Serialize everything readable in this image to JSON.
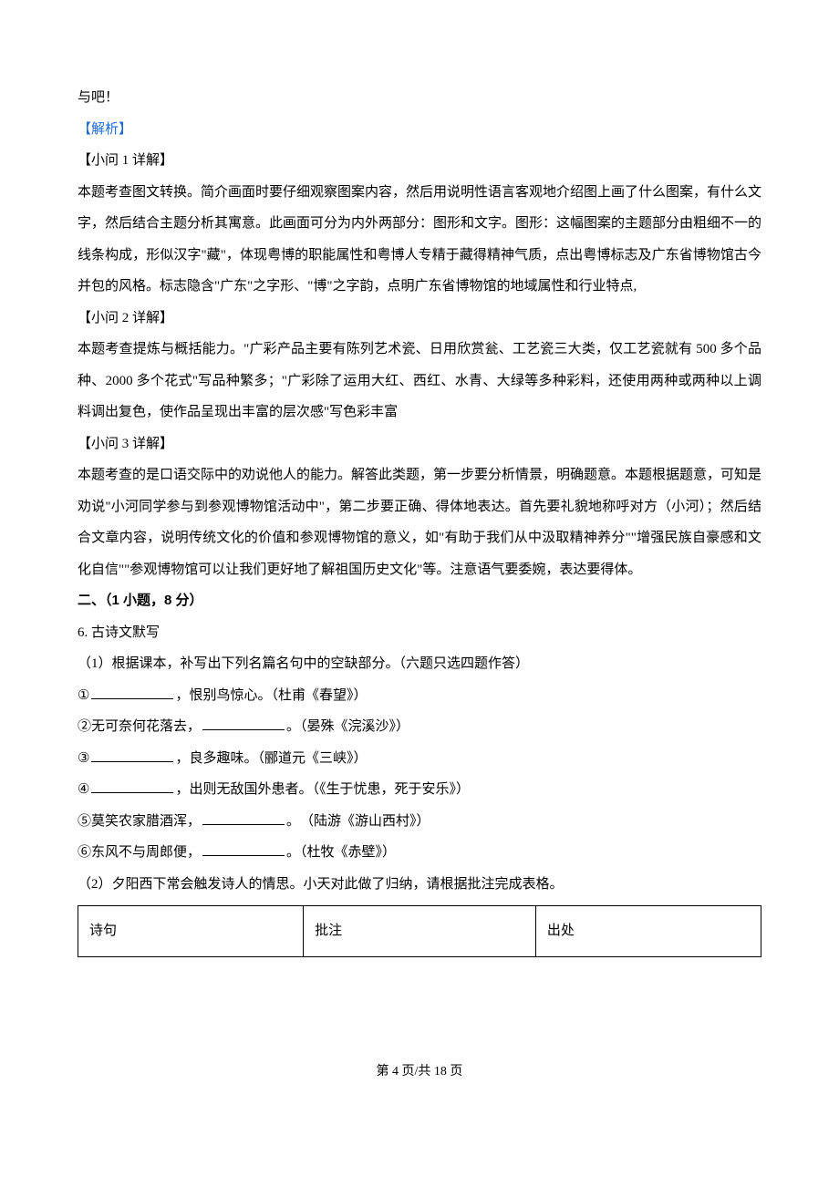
{
  "lines": {
    "l0": "与吧！",
    "l1": "【解析】",
    "l2": "【小问 1 详解】",
    "l3": "本题考查图文转换。简介画面时要仔细观察图案内容，然后用说明性语言客观地介绍图上画了什么图案，有什么文字，然后结合主题分析其寓意。此画面可分为内外两部分：图形和文字。图形：这幅图案的主题部分由粗细不一的线条构成，形似汉字\"藏\"，体现粤博的职能属性和粤博人专精于藏得精神气质，点出粤博标志及广东省博物馆古今并包的风格。标志隐含\"广东\"之字形、\"博\"之字韵，点明广东省博物馆的地域属性和行业特点,",
    "l4": "【小问 2 详解】",
    "l5": "本题考查提炼与概括能力。\"广彩产品主要有陈列艺术瓷、日用欣赏瓮、工艺瓷三大类，仅工艺瓷就有 500 多个品种、2000 多个花式\"写品种繁多；\"广彩除了运用大红、西红、水青、大绿等多种彩料，还使用两种或两种以上调料调出复色，使作品呈现出丰富的层次感\"写色彩丰富",
    "l6": "【小问 3 详解】",
    "l7": "本题考查的是口语交际中的劝说他人的能力。解答此类题，第一步要分析情景，明确题意。本题根据题意，可知是劝说\"小河同学参与到参观博物馆活动中\"，第二步要正确、得体地表达。首先要礼貌地称呼对方（小河）；然后结合文章内容，说明传统文化的价值和参观博物馆的意义，如\"有助于我们从中汲取精神养分\"\"增强民族自豪感和文化自信\"\"参观博物馆可以让我们更好地了解祖国历史文化\"等。注意语气要委婉，表达要得体。",
    "l8": "二、（1 小题，8 分）",
    "l9": "6. 古诗文默写",
    "l10": "（1）根据课本，补写出下列名篇名句中的空缺部分。（六题只选四题作答）",
    "q1_prefix": "①",
    "q1_suffix": "，恨别鸟惊心。（杜甫《春望》）",
    "q2_prefix": "②无可奈何花落去，",
    "q2_suffix": "。（晏殊《浣溪沙》）",
    "q3_prefix": "③",
    "q3_suffix": "，良多趣味。（郦道元《三峡》）",
    "q4_prefix": "④",
    "q4_suffix": "，出则无敌国外患者。（《生于忧患，死于安乐》）",
    "q5_prefix": "⑤莫笑农家腊酒浑，",
    "q5_suffix": "。　（陆游《游山西村》）",
    "q6_prefix": "⑥东风不与周郎便，",
    "q6_suffix": "。（杜牧《赤壁》）",
    "l11": "（2）夕阳西下常会触发诗人的情思。小天对此做了归纳，请根据批注完成表格。"
  },
  "table": {
    "headers": [
      "诗句",
      "批注",
      "出处"
    ]
  },
  "footer": "第 4 页/共 18 页"
}
